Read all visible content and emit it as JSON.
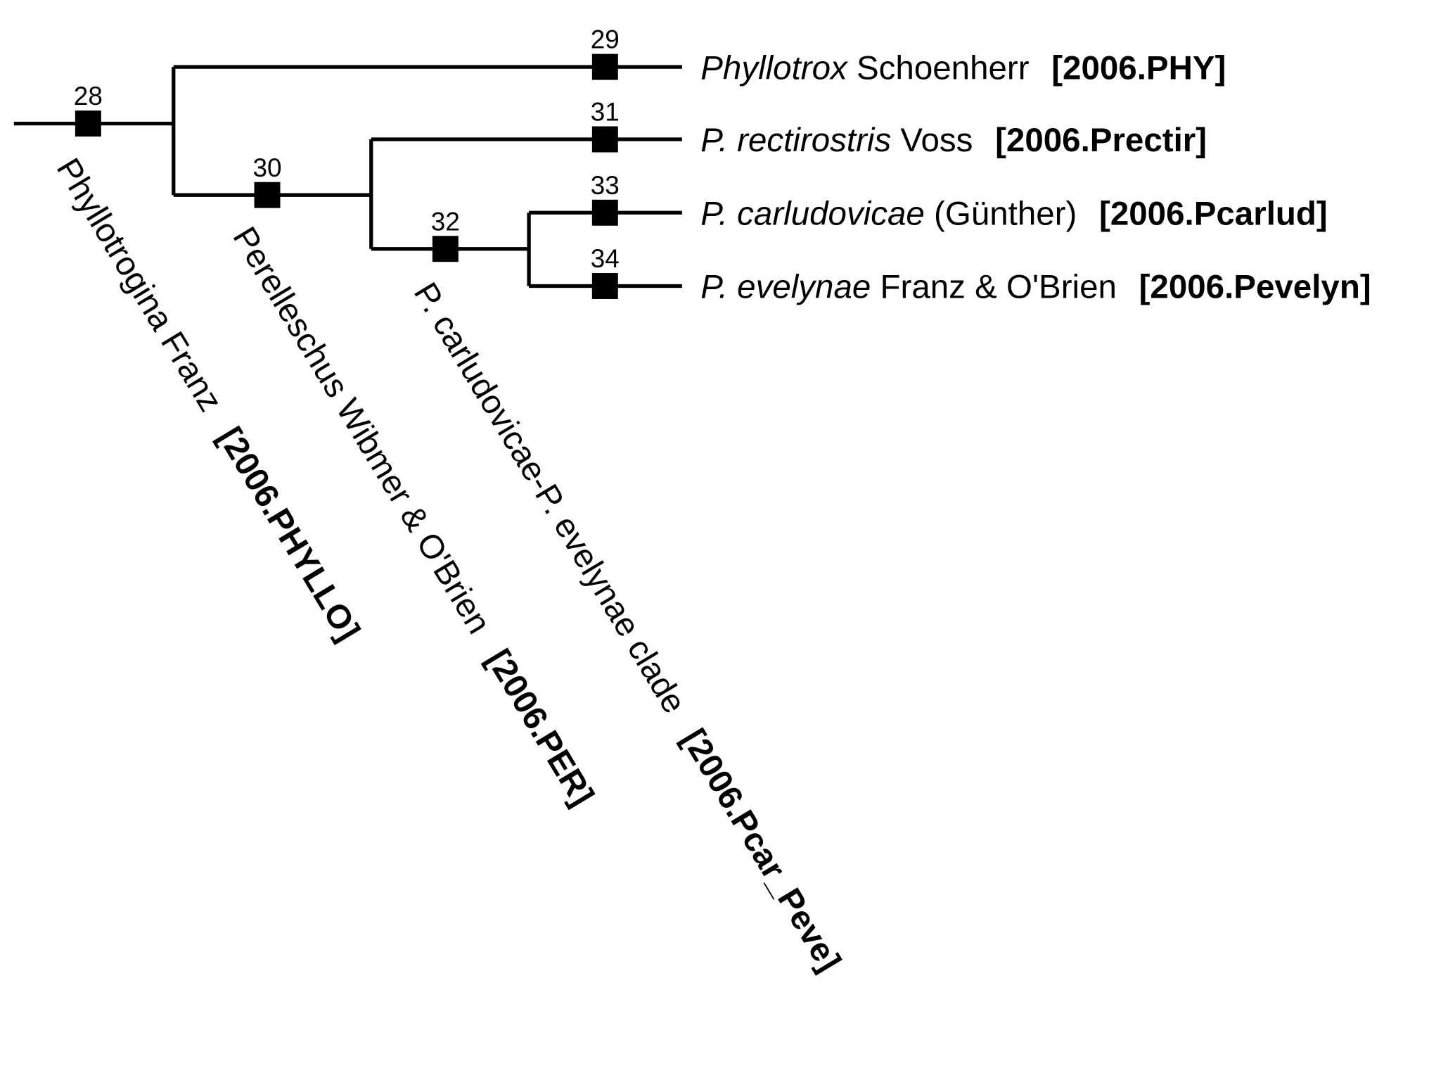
{
  "nodes": [
    {
      "id": "28"
    },
    {
      "id": "29"
    },
    {
      "id": "30"
    },
    {
      "id": "31"
    },
    {
      "id": "32"
    },
    {
      "id": "33"
    },
    {
      "id": "34"
    }
  ],
  "terminals": [
    {
      "genus": "Phyllotrox",
      "author": "Schoenherr",
      "code": "[2006.PHY]"
    },
    {
      "genus": "P. rectirostris",
      "author": "Voss",
      "code": "[2006.Prectir]"
    },
    {
      "genus": "P. carludovicae",
      "author": "(Günther)",
      "code": "[2006.Pcarlud]"
    },
    {
      "genus": "P. evelynae",
      "author": "Franz & O'Brien",
      "code": "[2006.Pevelyn]"
    }
  ],
  "clades": [
    {
      "name": "Phyllotrogina Franz",
      "code": "[2006.PHYLLO]"
    },
    {
      "name": "Perelleschus Wibmer & O'Brien",
      "code": "[2006.PER]"
    },
    {
      "name": "P. carludovicae-P. evelynae clade",
      "code": "[2006.Pcar_Peve]"
    }
  ]
}
